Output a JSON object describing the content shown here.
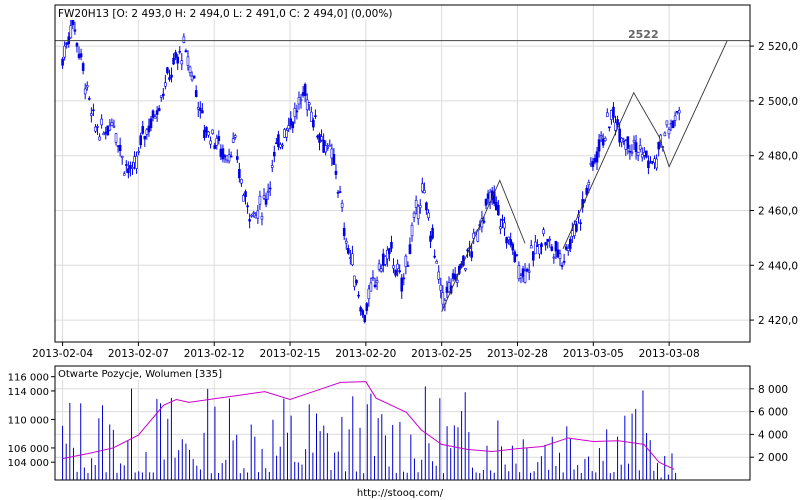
{
  "chart_data": [
    {
      "type": "candlestick",
      "title": "FW20H13 [O: 2 493,0  H: 2 494,0  L: 2 491,0  C: 2 494,0] (0,00%)",
      "annotation": "2522",
      "ylim": [
        2412,
        2535
      ],
      "y_ticks": [
        {
          "value": 2420,
          "label": "2 420,0"
        },
        {
          "value": 2440,
          "label": "2 440,0"
        },
        {
          "value": 2460,
          "label": "2 460,0"
        },
        {
          "value": 2480,
          "label": "2 480,0"
        },
        {
          "value": 2500,
          "label": "2 500,0"
        },
        {
          "value": 2520,
          "label": "2 520,0"
        }
      ],
      "x_ticks": [
        "2013-02-04",
        "2013-02-07",
        "2013-02-12",
        "2013-02-15",
        "2013-02-20",
        "2013-02-25",
        "2013-02-28",
        "2013-03-05",
        "2013-03-08"
      ],
      "x_tick_index": [
        0,
        3,
        6,
        9,
        12,
        15,
        18,
        21,
        24
      ],
      "x_range": [
        -0.3,
        27.2
      ],
      "horizontal_line": 2522,
      "close_path": [
        {
          "x": 0.0,
          "y": 2515
        },
        {
          "x": 0.4,
          "y": 2530
        },
        {
          "x": 0.8,
          "y": 2512
        },
        {
          "x": 1.2,
          "y": 2492
        },
        {
          "x": 1.6,
          "y": 2488
        },
        {
          "x": 2.0,
          "y": 2494
        },
        {
          "x": 2.4,
          "y": 2478
        },
        {
          "x": 2.8,
          "y": 2473
        },
        {
          "x": 3.2,
          "y": 2488
        },
        {
          "x": 3.6,
          "y": 2494
        },
        {
          "x": 4.0,
          "y": 2505
        },
        {
          "x": 4.4,
          "y": 2513
        },
        {
          "x": 4.8,
          "y": 2519
        },
        {
          "x": 5.2,
          "y": 2508
        },
        {
          "x": 5.6,
          "y": 2490
        },
        {
          "x": 6.0,
          "y": 2487
        },
        {
          "x": 6.4,
          "y": 2480
        },
        {
          "x": 6.8,
          "y": 2484
        },
        {
          "x": 7.2,
          "y": 2464
        },
        {
          "x": 7.6,
          "y": 2458
        },
        {
          "x": 8.0,
          "y": 2463
        },
        {
          "x": 8.4,
          "y": 2480
        },
        {
          "x": 8.8,
          "y": 2490
        },
        {
          "x": 9.2,
          "y": 2495
        },
        {
          "x": 9.6,
          "y": 2503
        },
        {
          "x": 10.0,
          "y": 2492
        },
        {
          "x": 10.4,
          "y": 2484
        },
        {
          "x": 10.8,
          "y": 2476
        },
        {
          "x": 11.2,
          "y": 2450
        },
        {
          "x": 11.6,
          "y": 2435
        },
        {
          "x": 11.9,
          "y": 2421
        },
        {
          "x": 12.2,
          "y": 2430
        },
        {
          "x": 12.6,
          "y": 2440
        },
        {
          "x": 13.0,
          "y": 2445
        },
        {
          "x": 13.4,
          "y": 2432
        },
        {
          "x": 13.8,
          "y": 2450
        },
        {
          "x": 14.2,
          "y": 2468
        },
        {
          "x": 14.6,
          "y": 2452
        },
        {
          "x": 15.0,
          "y": 2428
        },
        {
          "x": 15.4,
          "y": 2432
        },
        {
          "x": 15.8,
          "y": 2440
        },
        {
          "x": 16.2,
          "y": 2446
        },
        {
          "x": 16.6,
          "y": 2458
        },
        {
          "x": 17.0,
          "y": 2465
        },
        {
          "x": 17.4,
          "y": 2455
        },
        {
          "x": 17.8,
          "y": 2446
        },
        {
          "x": 18.2,
          "y": 2437
        },
        {
          "x": 18.6,
          "y": 2443
        },
        {
          "x": 19.0,
          "y": 2451
        },
        {
          "x": 19.4,
          "y": 2446
        },
        {
          "x": 19.8,
          "y": 2443
        },
        {
          "x": 20.2,
          "y": 2452
        },
        {
          "x": 20.6,
          "y": 2462
        },
        {
          "x": 21.0,
          "y": 2478
        },
        {
          "x": 21.4,
          "y": 2488
        },
        {
          "x": 21.8,
          "y": 2495
        },
        {
          "x": 22.2,
          "y": 2487
        },
        {
          "x": 22.6,
          "y": 2484
        },
        {
          "x": 23.0,
          "y": 2480
        },
        {
          "x": 23.4,
          "y": 2476
        },
        {
          "x": 23.8,
          "y": 2487
        },
        {
          "x": 24.2,
          "y": 2493
        },
        {
          "x": 24.4,
          "y": 2494
        }
      ],
      "trend_lines": [
        [
          {
            "x": 15.0,
            "y": 2423
          },
          {
            "x": 17.3,
            "y": 2471
          },
          {
            "x": 18.3,
            "y": 2448
          }
        ],
        [
          {
            "x": 19.8,
            "y": 2446
          },
          {
            "x": 22.6,
            "y": 2503
          },
          {
            "x": 23.6,
            "y": 2487
          },
          {
            "x": 24.0,
            "y": 2476
          },
          {
            "x": 26.3,
            "y": 2522
          }
        ]
      ]
    },
    {
      "type": "bar+line",
      "legend": "Otwarte Pozycje, Wolumen [335]",
      "left_axis": {
        "ylim": [
          101500,
          117500
        ],
        "ticks": [
          {
            "value": 104000,
            "label": "104 000"
          },
          {
            "value": 106000,
            "label": "106 000"
          },
          {
            "value": 110000,
            "label": "110 000"
          },
          {
            "value": 114000,
            "label": "114 000"
          },
          {
            "value": 116000,
            "label": "116 000"
          }
        ]
      },
      "right_axis": {
        "ylim": [
          0,
          10000
        ],
        "ticks": [
          {
            "value": 2000,
            "label": "2 000"
          },
          {
            "value": 4000,
            "label": "4 000"
          },
          {
            "value": 6000,
            "label": "6 000"
          },
          {
            "value": 8000,
            "label": "8 000"
          }
        ]
      },
      "open_interest": [
        {
          "x": 0.0,
          "y": 104500
        },
        {
          "x": 1.0,
          "y": 105200
        },
        {
          "x": 2.0,
          "y": 106000
        },
        {
          "x": 3.0,
          "y": 107800
        },
        {
          "x": 4.0,
          "y": 112000
        },
        {
          "x": 4.5,
          "y": 112800
        },
        {
          "x": 5.0,
          "y": 112400
        },
        {
          "x": 6.0,
          "y": 112900
        },
        {
          "x": 7.0,
          "y": 113400
        },
        {
          "x": 8.0,
          "y": 113900
        },
        {
          "x": 9.0,
          "y": 112800
        },
        {
          "x": 10.0,
          "y": 114000
        },
        {
          "x": 11.0,
          "y": 115200
        },
        {
          "x": 12.0,
          "y": 115300
        },
        {
          "x": 12.4,
          "y": 113000
        },
        {
          "x": 13.0,
          "y": 112000
        },
        {
          "x": 13.6,
          "y": 111000
        },
        {
          "x": 14.2,
          "y": 108500
        },
        {
          "x": 15.0,
          "y": 106500
        },
        {
          "x": 16.0,
          "y": 105800
        },
        {
          "x": 17.0,
          "y": 105500
        },
        {
          "x": 18.0,
          "y": 105900
        },
        {
          "x": 19.0,
          "y": 106200
        },
        {
          "x": 20.0,
          "y": 107400
        },
        {
          "x": 21.0,
          "y": 106900
        },
        {
          "x": 22.0,
          "y": 107000
        },
        {
          "x": 23.0,
          "y": 106500
        },
        {
          "x": 23.6,
          "y": 104000
        },
        {
          "x": 24.2,
          "y": 103000
        }
      ],
      "volume_note": "blue vertical bars, values read on right axis"
    }
  ],
  "footer": {
    "url": "http://stooq.com/"
  },
  "colors": {
    "candles": "#0000e6",
    "open_interest": "#cc00cc",
    "grid": "#dcdcdc",
    "frame": "#000000",
    "annotation": "#666666"
  }
}
